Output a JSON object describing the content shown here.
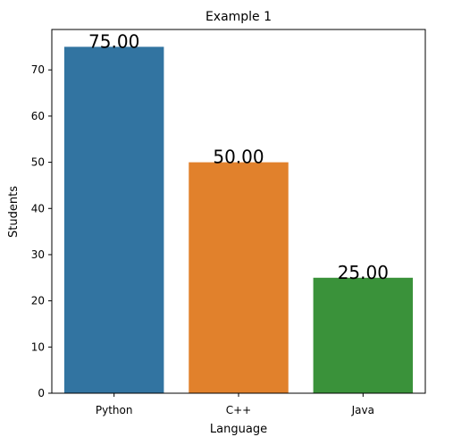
{
  "chart_data": {
    "type": "bar",
    "title": "Example 1",
    "xlabel": "Language",
    "ylabel": "Students",
    "categories": [
      "Python",
      "C++",
      "Java"
    ],
    "values": [
      75,
      50,
      25
    ],
    "data_labels": [
      "75.00",
      "50.00",
      "25.00"
    ],
    "colors": [
      "#3274a1",
      "#e1812c",
      "#3a923a"
    ],
    "ylim": [
      0,
      78.75
    ],
    "yticks": [
      0,
      10,
      20,
      30,
      40,
      50,
      60,
      70
    ],
    "ytick_labels": [
      "0",
      "10",
      "20",
      "30",
      "40",
      "50",
      "60",
      "70"
    ],
    "grid": false,
    "legend": "none"
  }
}
